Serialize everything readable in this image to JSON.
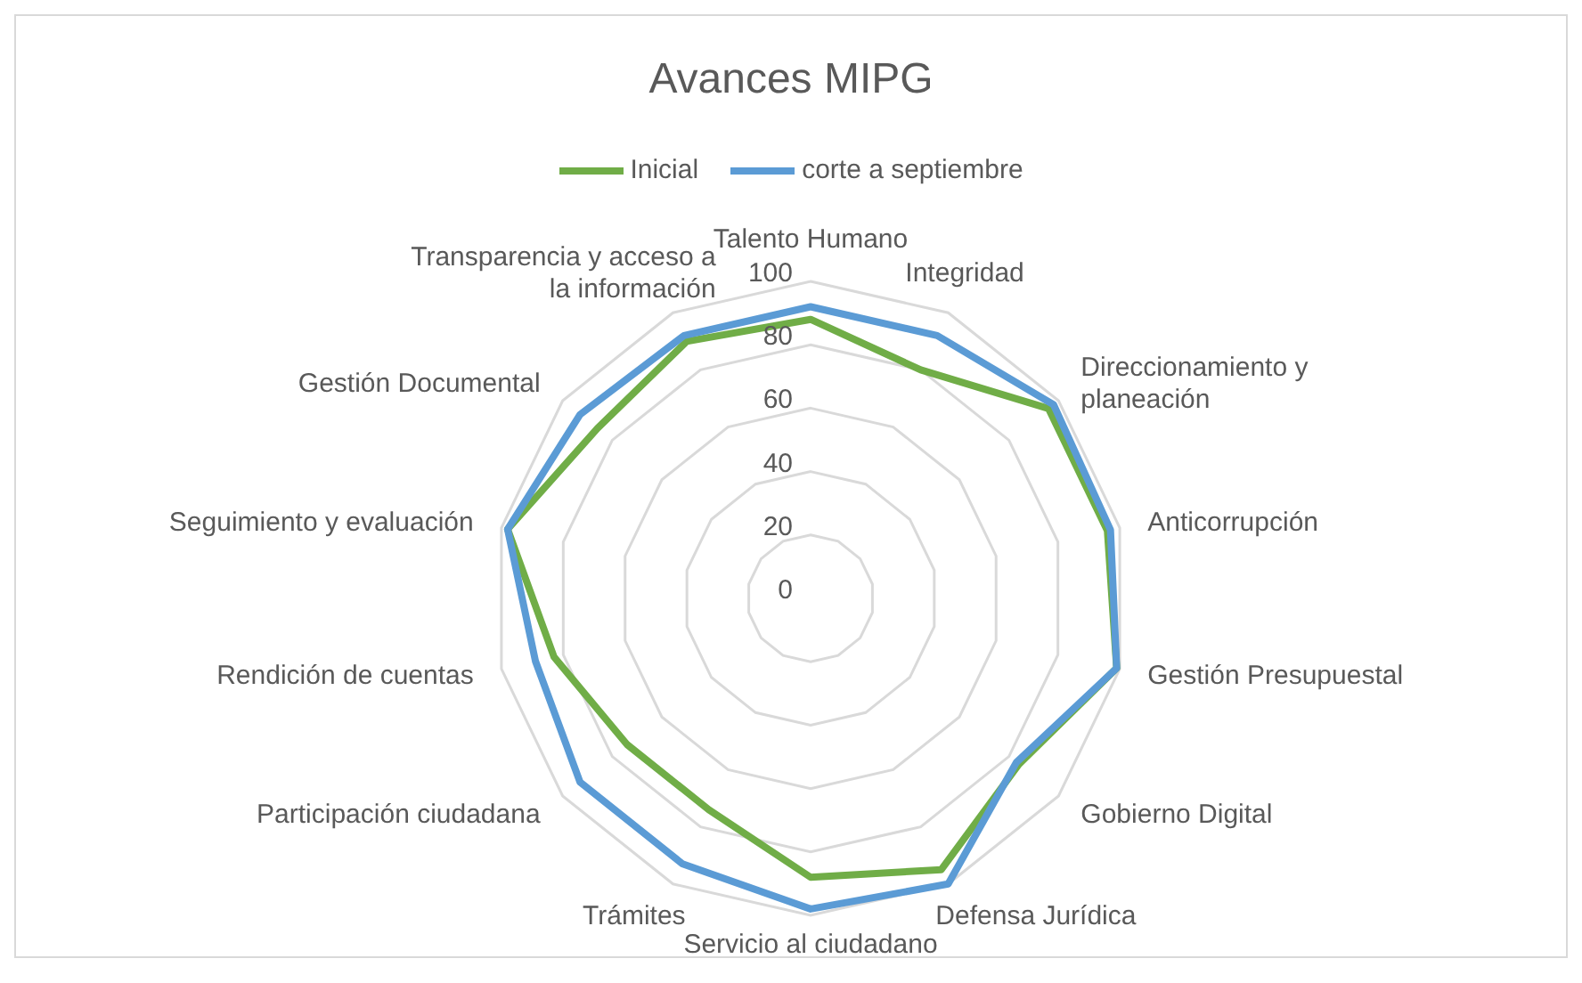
{
  "chart_data": {
    "type": "radar",
    "title": "Avances MIPG",
    "categories": [
      "Talento Humano",
      "Integridad",
      "Direccionamiento y planeación",
      "Anticorrupción",
      "Gestión Presupuestal",
      "Gobierno Digital",
      "Defensa Jurídica",
      "Servicio al ciudadano",
      "Trámites",
      "Participación ciudadana",
      "Rendición de cuentas",
      "Seguimiento y evaluación",
      "Gestión Documental",
      "Transparencia y acceso a la información"
    ],
    "series": [
      {
        "name": "Inicial",
        "color": "#70ad47",
        "values": [
          88,
          80,
          96,
          96,
          99,
          84,
          95,
          88,
          74,
          74,
          83,
          98,
          86,
          90
        ]
      },
      {
        "name": "corte a septiembre",
        "color": "#5b9bd5",
        "values": [
          92,
          92,
          98,
          97,
          99,
          83,
          100,
          98,
          93,
          93,
          89,
          98,
          93,
          92
        ]
      }
    ],
    "ylim": [
      0,
      100
    ],
    "yticks": [
      0,
      20,
      40,
      60,
      80,
      100
    ],
    "grid": true,
    "legend": "top",
    "marker": "none",
    "line_style": "solid"
  }
}
